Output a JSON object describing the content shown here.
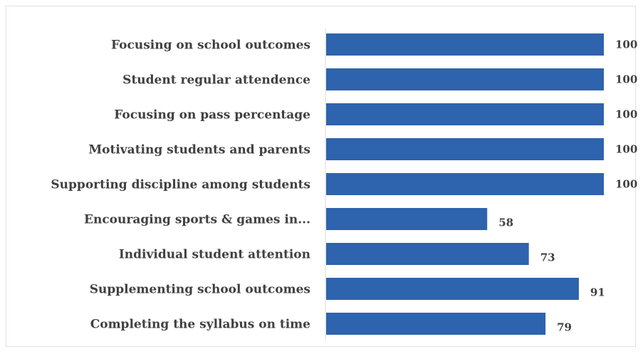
{
  "chart_data": {
    "type": "bar",
    "orientation": "horizontal",
    "categories": [
      "Focusing on school outcomes",
      "Student regular attendence",
      "Focusing on pass percentage",
      "Motivating students and parents",
      "Supporting discipline among students",
      "Encouraging sports & games in...",
      "Individual student attention",
      "Supplementing school outcomes",
      "Completing the syllabus on time"
    ],
    "values": [
      100,
      100,
      100,
      100,
      100,
      58,
      73,
      91,
      79
    ],
    "xlim": [
      0,
      100
    ],
    "bar_color": "#2e63ad",
    "grid": false,
    "legend": "none"
  }
}
